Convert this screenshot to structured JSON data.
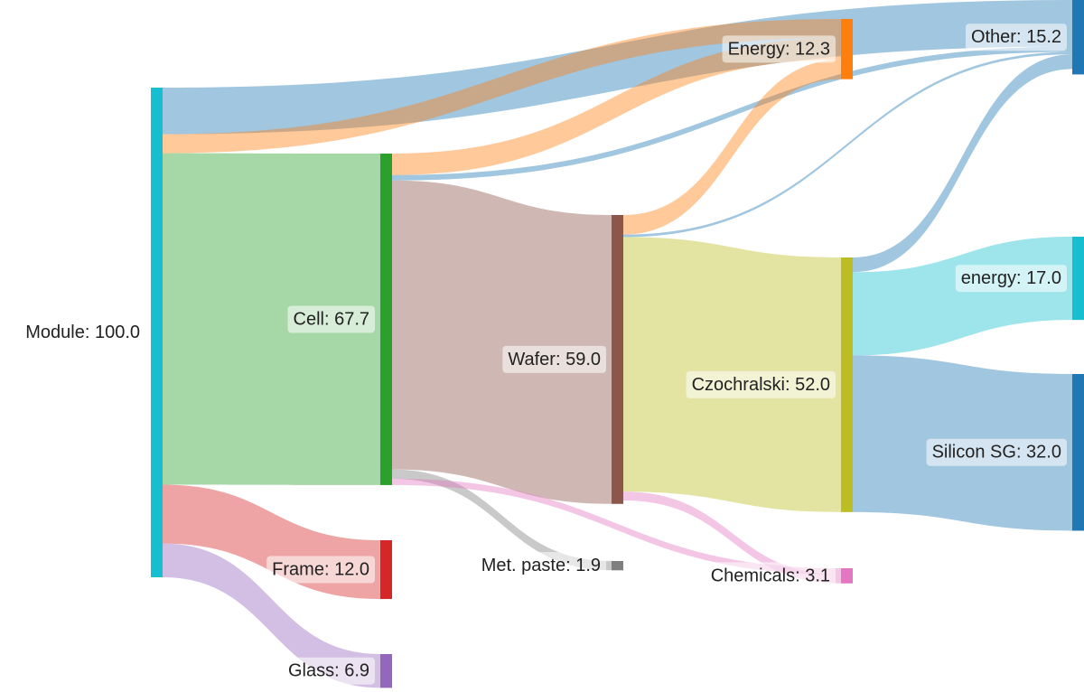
{
  "chart_data": {
    "type": "sankey",
    "title": "",
    "nodes": [
      {
        "id": "module",
        "label": "Module: 100.0",
        "value": 100.0,
        "color": "#17becf"
      },
      {
        "id": "cell",
        "label": "Cell: 67.7",
        "value": 67.7,
        "color": "#2ca02c"
      },
      {
        "id": "frame",
        "label": "Frame: 12.0",
        "value": 12.0,
        "color": "#d62728"
      },
      {
        "id": "glass",
        "label": "Glass: 6.9",
        "value": 6.9,
        "color": "#9467bd"
      },
      {
        "id": "wafer",
        "label": "Wafer: 59.0",
        "value": 59.0,
        "color": "#8c564b"
      },
      {
        "id": "metpaste",
        "label": "Met. paste: 1.9",
        "value": 1.9,
        "color": "#7f7f7f"
      },
      {
        "id": "czochralski",
        "label": "Czochralski: 52.0",
        "value": 52.0,
        "color": "#bcbd22"
      },
      {
        "id": "chemicals",
        "label": "Chemicals: 3.1",
        "value": 3.1,
        "color": "#e377c2"
      },
      {
        "id": "energy",
        "label": "Energy: 12.3",
        "value": 12.3,
        "color": "#ff7f0e"
      },
      {
        "id": "other",
        "label": "Other: 15.2",
        "value": 15.2,
        "color": "#1f77b4"
      },
      {
        "id": "energy2",
        "label": "energy: 17.0",
        "value": 17.0,
        "color": "#17becf"
      },
      {
        "id": "siliconsg",
        "label": "Silicon SG: 32.0",
        "value": 32.0,
        "color": "#1f77b4"
      }
    ],
    "links": [
      {
        "source": "module",
        "target": "other",
        "value": 9.5
      },
      {
        "source": "module",
        "target": "energy",
        "value": 3.9
      },
      {
        "source": "module",
        "target": "cell",
        "value": 67.7
      },
      {
        "source": "module",
        "target": "frame",
        "value": 12.0
      },
      {
        "source": "module",
        "target": "glass",
        "value": 6.9
      },
      {
        "source": "cell",
        "target": "energy",
        "value": 4.4
      },
      {
        "source": "cell",
        "target": "other",
        "value": 1.1
      },
      {
        "source": "cell",
        "target": "wafer",
        "value": 59.0
      },
      {
        "source": "cell",
        "target": "metpaste",
        "value": 1.9
      },
      {
        "source": "cell",
        "target": "chemicals",
        "value": 1.3
      },
      {
        "source": "wafer",
        "target": "energy",
        "value": 4.0
      },
      {
        "source": "wafer",
        "target": "other",
        "value": 0.5
      },
      {
        "source": "wafer",
        "target": "czochralski",
        "value": 52.0
      },
      {
        "source": "wafer",
        "target": "chemicals",
        "value": 1.8
      },
      {
        "source": "czochralski",
        "target": "other",
        "value": 3.0
      },
      {
        "source": "czochralski",
        "target": "energy2",
        "value": 17.0
      },
      {
        "source": "czochralski",
        "target": "siliconsg",
        "value": 32.0
      }
    ]
  }
}
